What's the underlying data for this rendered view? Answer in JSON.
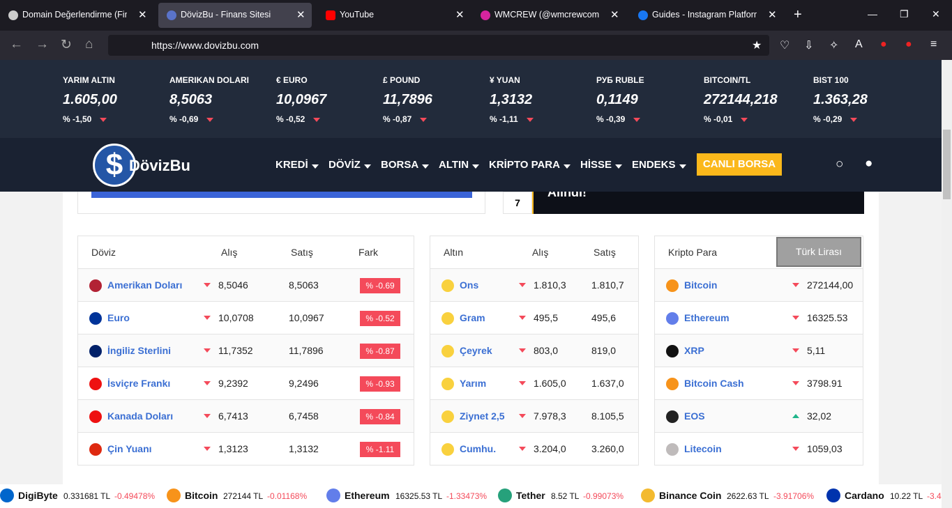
{
  "browser": {
    "tabs": [
      "Domain Değerlendirme (Finans",
      "DövizBu - Finans Sitesi",
      "YouTube",
      "WMCREW (@wmcrewcom) • In",
      "Guides - Instagram Platform"
    ],
    "url": "https://www.dovizbu.com"
  },
  "ticker": [
    {
      "name": "YARIM ALTIN",
      "value": "1.605,00",
      "change": "% -1,50"
    },
    {
      "name": "AMERIKAN DOLARI",
      "value": "8,5063",
      "change": "% -0,69"
    },
    {
      "name": "€ EURO",
      "value": "10,0967",
      "change": "% -0,52"
    },
    {
      "name": "£ POUND",
      "value": "11,7896",
      "change": "% -0,87"
    },
    {
      "name": "¥ YUAN",
      "value": "1,3132",
      "change": "% -1,11"
    },
    {
      "name": "РУБ RUBLE",
      "value": "0,1149",
      "change": "% -0,39"
    },
    {
      "name": "BITCOIN/TL",
      "value": "272144,218",
      "change": "% -0,01"
    },
    {
      "name": "BIST 100",
      "value": "1.363,28",
      "change": "% -0,29"
    }
  ],
  "nav": {
    "logo": "DövizBu",
    "menu": [
      "KREDİ",
      "DÖVİZ",
      "BORSA",
      "ALTIN",
      "KRİPTO PARA",
      "HİSSE",
      "ENDEKS"
    ],
    "button": "CANLI BORSA"
  },
  "banner": {
    "number": "7",
    "text": "Alındı!"
  },
  "doviz": {
    "header": [
      "Döviz",
      "Alış",
      "Satış",
      "Fark"
    ],
    "rows": [
      {
        "name": "Amerikan Doları",
        "buy": "8,5046",
        "sell": "8,5063",
        "diff": "% -0.69"
      },
      {
        "name": "Euro",
        "buy": "10,0708",
        "sell": "10,0967",
        "diff": "% -0.52"
      },
      {
        "name": "İngiliz Sterlini",
        "buy": "11,7352",
        "sell": "11,7896",
        "diff": "% -0.87"
      },
      {
        "name": "İsviçre Frankı",
        "buy": "9,2392",
        "sell": "9,2496",
        "diff": "% -0.93"
      },
      {
        "name": "Kanada Doları",
        "buy": "6,7413",
        "sell": "6,7458",
        "diff": "% -0.84"
      },
      {
        "name": "Çin Yuanı",
        "buy": "1,3123",
        "sell": "1,3132",
        "diff": "% -1.11"
      }
    ]
  },
  "altin": {
    "header": [
      "Altın",
      "Alış",
      "Satış"
    ],
    "rows": [
      {
        "name": "Ons",
        "buy": "1.810,3",
        "sell": "1.810,7"
      },
      {
        "name": "Gram",
        "buy": "495,5",
        "sell": "495,6"
      },
      {
        "name": "Çeyrek",
        "buy": "803,0",
        "sell": "819,0"
      },
      {
        "name": "Yarım",
        "buy": "1.605,0",
        "sell": "1.637,0"
      },
      {
        "name": "Ziynet 2,5",
        "buy": "7.978,3",
        "sell": "8.105,5"
      },
      {
        "name": "Cumhu.",
        "buy": "3.204,0",
        "sell": "3.260,0"
      }
    ]
  },
  "kripto": {
    "header": "Kripto Para",
    "select": "Türk Lirası",
    "rows": [
      {
        "name": "Bitcoin",
        "value": "272144,00",
        "trend": "down"
      },
      {
        "name": "Ethereum",
        "value": "16325.53",
        "trend": "down"
      },
      {
        "name": "XRP",
        "value": "5,11",
        "trend": "down"
      },
      {
        "name": "Bitcoin Cash",
        "value": "3798.91",
        "trend": "down"
      },
      {
        "name": "EOS",
        "value": "32,02",
        "trend": "up"
      },
      {
        "name": "Litecoin",
        "value": "1059,03",
        "trend": "down"
      }
    ]
  },
  "bottom_ticker": [
    {
      "name": "DigiByte",
      "price": "0.331681 TL",
      "change": "-0.49478%"
    },
    {
      "name": "Bitcoin",
      "price": "272144 TL",
      "change": "-0.01168%"
    },
    {
      "name": "Ethereum",
      "price": "16325.53 TL",
      "change": "-1.33473%"
    },
    {
      "name": "Tether",
      "price": "8.52 TL",
      "change": "-0.99073%"
    },
    {
      "name": "Binance Coin",
      "price": "2622.63 TL",
      "change": "-3.91706%"
    },
    {
      "name": "Cardano",
      "price": "10.22 TL",
      "change": "-3.4"
    }
  ]
}
